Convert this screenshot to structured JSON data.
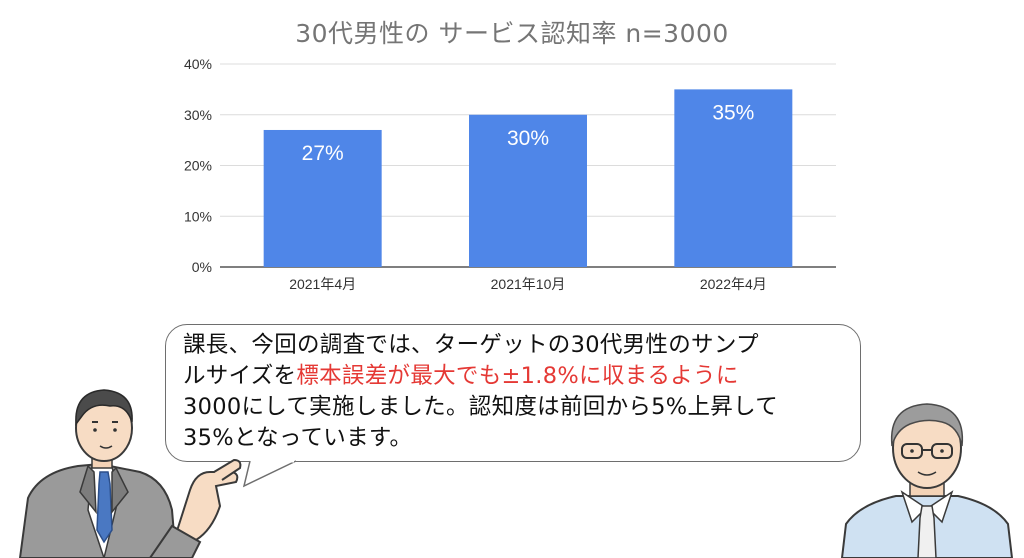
{
  "chart_data": {
    "type": "bar",
    "title": "30代男性の サービス認知率 n=3000",
    "categories": [
      "2021年4月",
      "2021年10月",
      "2022年4月"
    ],
    "values": [
      27,
      30,
      35
    ],
    "data_labels": [
      "27%",
      "30%",
      "35%"
    ],
    "ylim": [
      0,
      40
    ],
    "yticks": [
      "0%",
      "10%",
      "20%",
      "30%",
      "40%"
    ],
    "ytick_values": [
      0,
      10,
      20,
      30,
      40
    ],
    "xlabel": "",
    "ylabel": "",
    "grid": true,
    "bar_color": "#4f86e8"
  },
  "speech": {
    "line1": "課長、今回の調査では、ターゲットの30代男性のサンプ",
    "line2_before": "ルサイズを",
    "line2_highlight": "標本誤差が最大でも±1.8%に収まるように",
    "line3": "3000にして実施しました。認知度は前回から5%上昇して",
    "line4": "35%となっています。",
    "highlight_color": "#e53935"
  }
}
